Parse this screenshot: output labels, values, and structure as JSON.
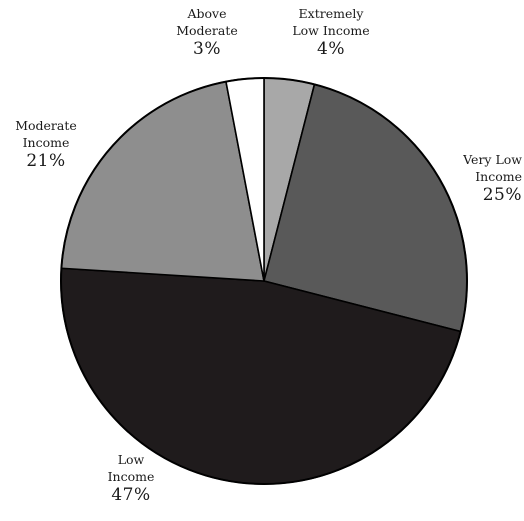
{
  "chart_data": {
    "type": "pie",
    "title": "",
    "slices": [
      {
        "label_line1": "Extremely",
        "label_line2": "Low Income",
        "percent_label": "4%",
        "value": 4,
        "color": "#a8a8a8"
      },
      {
        "label_line1": "Very Low",
        "label_line2": "Income",
        "percent_label": "25%",
        "value": 25,
        "color": "#595959"
      },
      {
        "label_line1": "Low",
        "label_line2": "Income",
        "percent_label": "47%",
        "value": 47,
        "color": "#1f1b1c"
      },
      {
        "label_line1": "Moderate",
        "label_line2": "Income",
        "percent_label": "21%",
        "value": 21,
        "color": "#8e8e8e"
      },
      {
        "label_line1": "Above",
        "label_line2": "Moderate",
        "percent_label": "3%",
        "value": 3,
        "color": "#ffffff"
      }
    ],
    "start_angle_deg": 0,
    "direction": "clockwise",
    "edge_color": "#000000"
  }
}
